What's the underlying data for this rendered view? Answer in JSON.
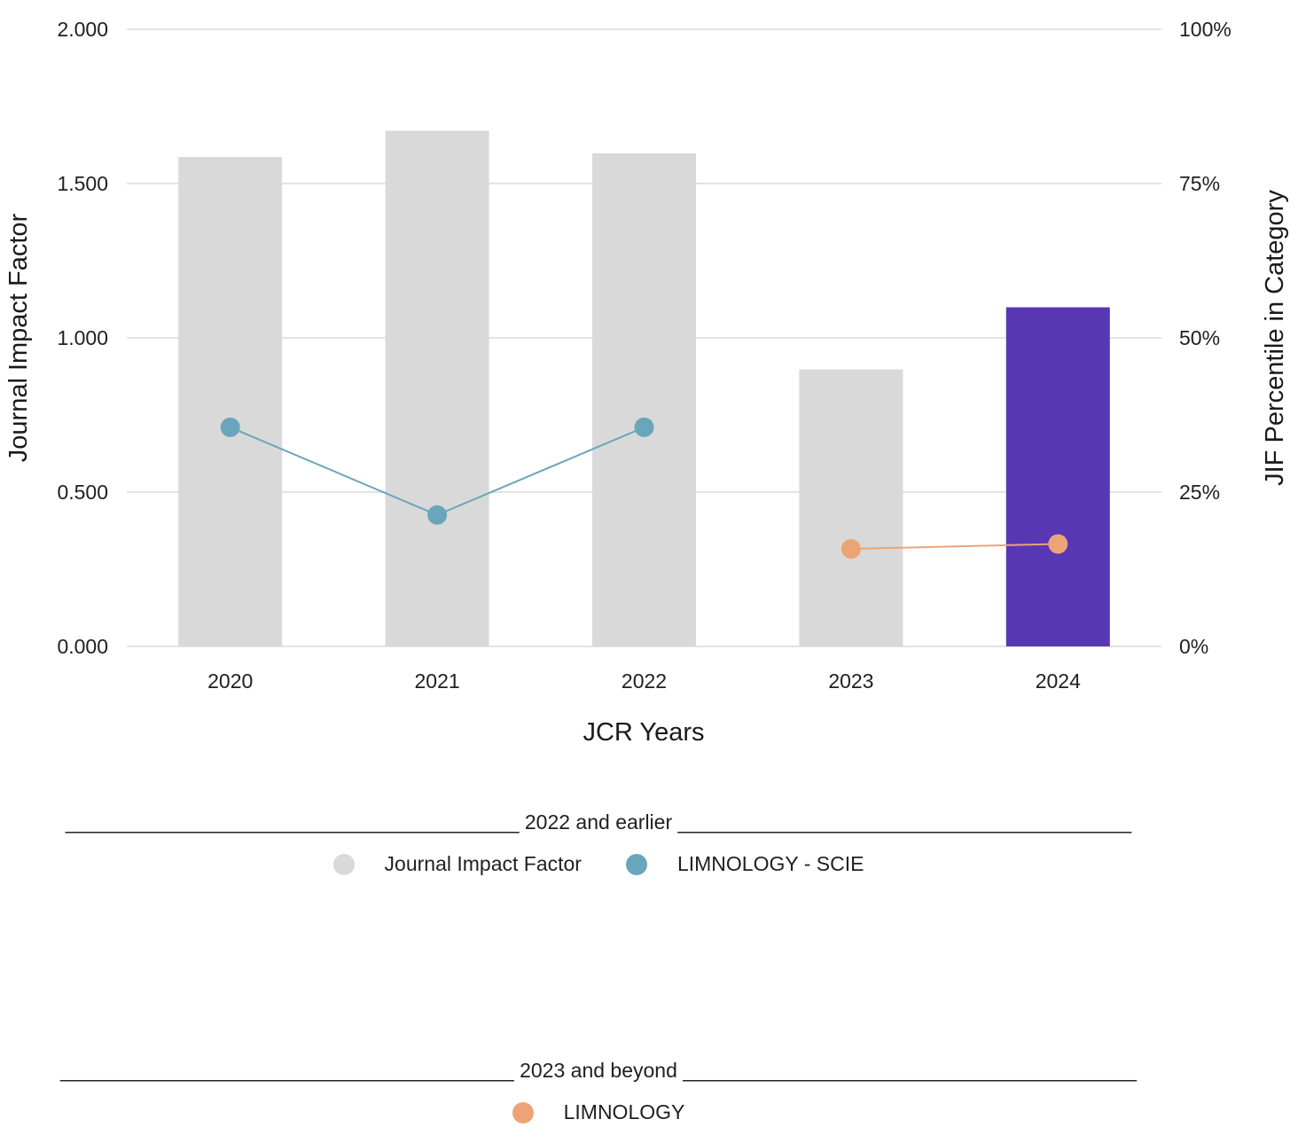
{
  "chart_data": {
    "type": "bar",
    "title": "",
    "xlabel": "JCR Years",
    "ylabel": "Journal Impact Factor",
    "y2label": "JIF Percentile in Category",
    "categories": [
      "2020",
      "2021",
      "2022",
      "2023",
      "2024"
    ],
    "ylim": [
      0,
      2.0
    ],
    "y2lim": [
      0,
      100
    ],
    "yticks": [
      "0.000",
      "0.500",
      "1.000",
      "1.500",
      "2.000"
    ],
    "y2ticks": [
      "0%",
      "25%",
      "50%",
      "75%",
      "100%"
    ],
    "grid": true,
    "bar_series": {
      "name": "Journal Impact Factor",
      "values": [
        1.586,
        1.671,
        1.598,
        0.898,
        1.099
      ],
      "colors": [
        "#d9d9d9",
        "#d9d9d9",
        "#d9d9d9",
        "#d9d9d9",
        "#5837b5"
      ]
    },
    "line_series": [
      {
        "name": "LIMNOLOGY - SCIE",
        "color": "#6aa6bb",
        "x": [
          "2020",
          "2021",
          "2022"
        ],
        "values": [
          35.5,
          21.3,
          35.5
        ]
      },
      {
        "name": "LIMNOLOGY",
        "color": "#eca477",
        "x": [
          "2023",
          "2024"
        ],
        "values": [
          15.8,
          16.6
        ]
      }
    ]
  },
  "legend": {
    "group1": {
      "header": "________________________________________ 2022 and earlier ________________________________________",
      "items": [
        {
          "label": "Journal Impact Factor",
          "color": "#d9d9d9"
        },
        {
          "label": "LIMNOLOGY - SCIE",
          "color": "#6aa6bb"
        }
      ]
    },
    "group2": {
      "header": "________________________________________ 2023 and beyond ________________________________________",
      "items": [
        {
          "label": "LIMNOLOGY",
          "color": "#eca477"
        }
      ]
    }
  }
}
